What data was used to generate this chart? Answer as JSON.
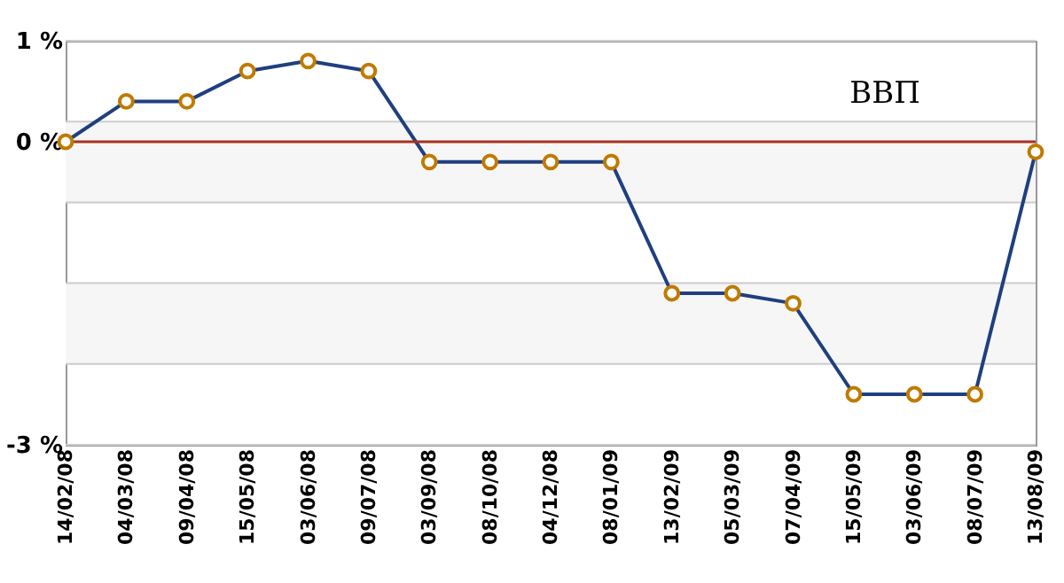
{
  "chart_data": {
    "type": "line",
    "title": "ВВП",
    "categories": [
      "14/02/08",
      "04/03/08",
      "09/04/08",
      "15/05/08",
      "03/06/08",
      "09/07/08",
      "03/09/08",
      "08/10/08",
      "04/12/08",
      "08/01/09",
      "13/02/09",
      "05/03/09",
      "07/04/09",
      "15/05/09",
      "03/06/09",
      "08/07/09",
      "13/08/09"
    ],
    "series": [
      {
        "color": "#1f3f7f",
        "values": [
          0,
          0.4,
          0.4,
          0.7,
          0.8,
          0.7,
          -0.2,
          -0.2,
          -0.2,
          -0.2,
          -1.5,
          -1.5,
          -1.6,
          -2.5,
          -2.5,
          -2.5,
          -0.1
        ]
      }
    ],
    "ylim": [
      -3,
      1
    ],
    "yticks": [
      {
        "value": 1,
        "label": "1 %"
      },
      {
        "value": 0.2,
        "label": null
      },
      {
        "value": 0,
        "label": "0 %"
      },
      {
        "value": -0.6,
        "label": null
      },
      {
        "value": -1.4,
        "label": null
      },
      {
        "value": -2.2,
        "label": null
      },
      {
        "value": -3,
        "label": "-3 %"
      }
    ],
    "grid": "y",
    "marker": "circle",
    "line_style": "solid",
    "bands": [
      {
        "axis": "y",
        "from": -0.6,
        "to": 0.2,
        "color": "#f6f6f6"
      },
      {
        "axis": "y",
        "from": -2.2,
        "to": -1.4,
        "color": "#f6f6f6"
      }
    ],
    "ref_lines": [
      {
        "axis": "y",
        "value": 0,
        "color": "#a83220"
      }
    ]
  }
}
